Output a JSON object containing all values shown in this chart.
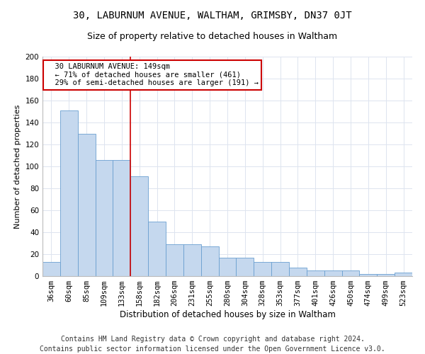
{
  "title": "30, LABURNUM AVENUE, WALTHAM, GRIMSBY, DN37 0JT",
  "subtitle": "Size of property relative to detached houses in Waltham",
  "xlabel": "Distribution of detached houses by size in Waltham",
  "ylabel": "Number of detached properties",
  "categories": [
    "36sqm",
    "60sqm",
    "85sqm",
    "109sqm",
    "133sqm",
    "158sqm",
    "182sqm",
    "206sqm",
    "231sqm",
    "255sqm",
    "280sqm",
    "304sqm",
    "328sqm",
    "353sqm",
    "377sqm",
    "401sqm",
    "426sqm",
    "450sqm",
    "474sqm",
    "499sqm",
    "523sqm"
  ],
  "values": [
    13,
    151,
    130,
    106,
    106,
    91,
    50,
    29,
    29,
    27,
    17,
    17,
    13,
    13,
    8,
    5,
    5,
    5,
    2,
    2,
    3
  ],
  "bar_color": "#c5d8ee",
  "bar_edge_color": "#6a9fd0",
  "background_color": "#ffffff",
  "grid_color": "#dde4ef",
  "annotation_text": "  30 LABURNUM AVENUE: 149sqm\n  ← 71% of detached houses are smaller (461)\n  29% of semi-detached houses are larger (191) →",
  "annotation_box_color": "#ffffff",
  "annotation_box_edge": "#cc0000",
  "vline_x_index": 4.5,
  "vline_color": "#cc0000",
  "ylim": [
    0,
    200
  ],
  "yticks": [
    0,
    20,
    40,
    60,
    80,
    100,
    120,
    140,
    160,
    180,
    200
  ],
  "footer": "Contains HM Land Registry data © Crown copyright and database right 2024.\nContains public sector information licensed under the Open Government Licence v3.0.",
  "title_fontsize": 10,
  "subtitle_fontsize": 9,
  "xlabel_fontsize": 8.5,
  "ylabel_fontsize": 8,
  "footer_fontsize": 7,
  "tick_fontsize": 7.5,
  "ann_fontsize": 7.5
}
